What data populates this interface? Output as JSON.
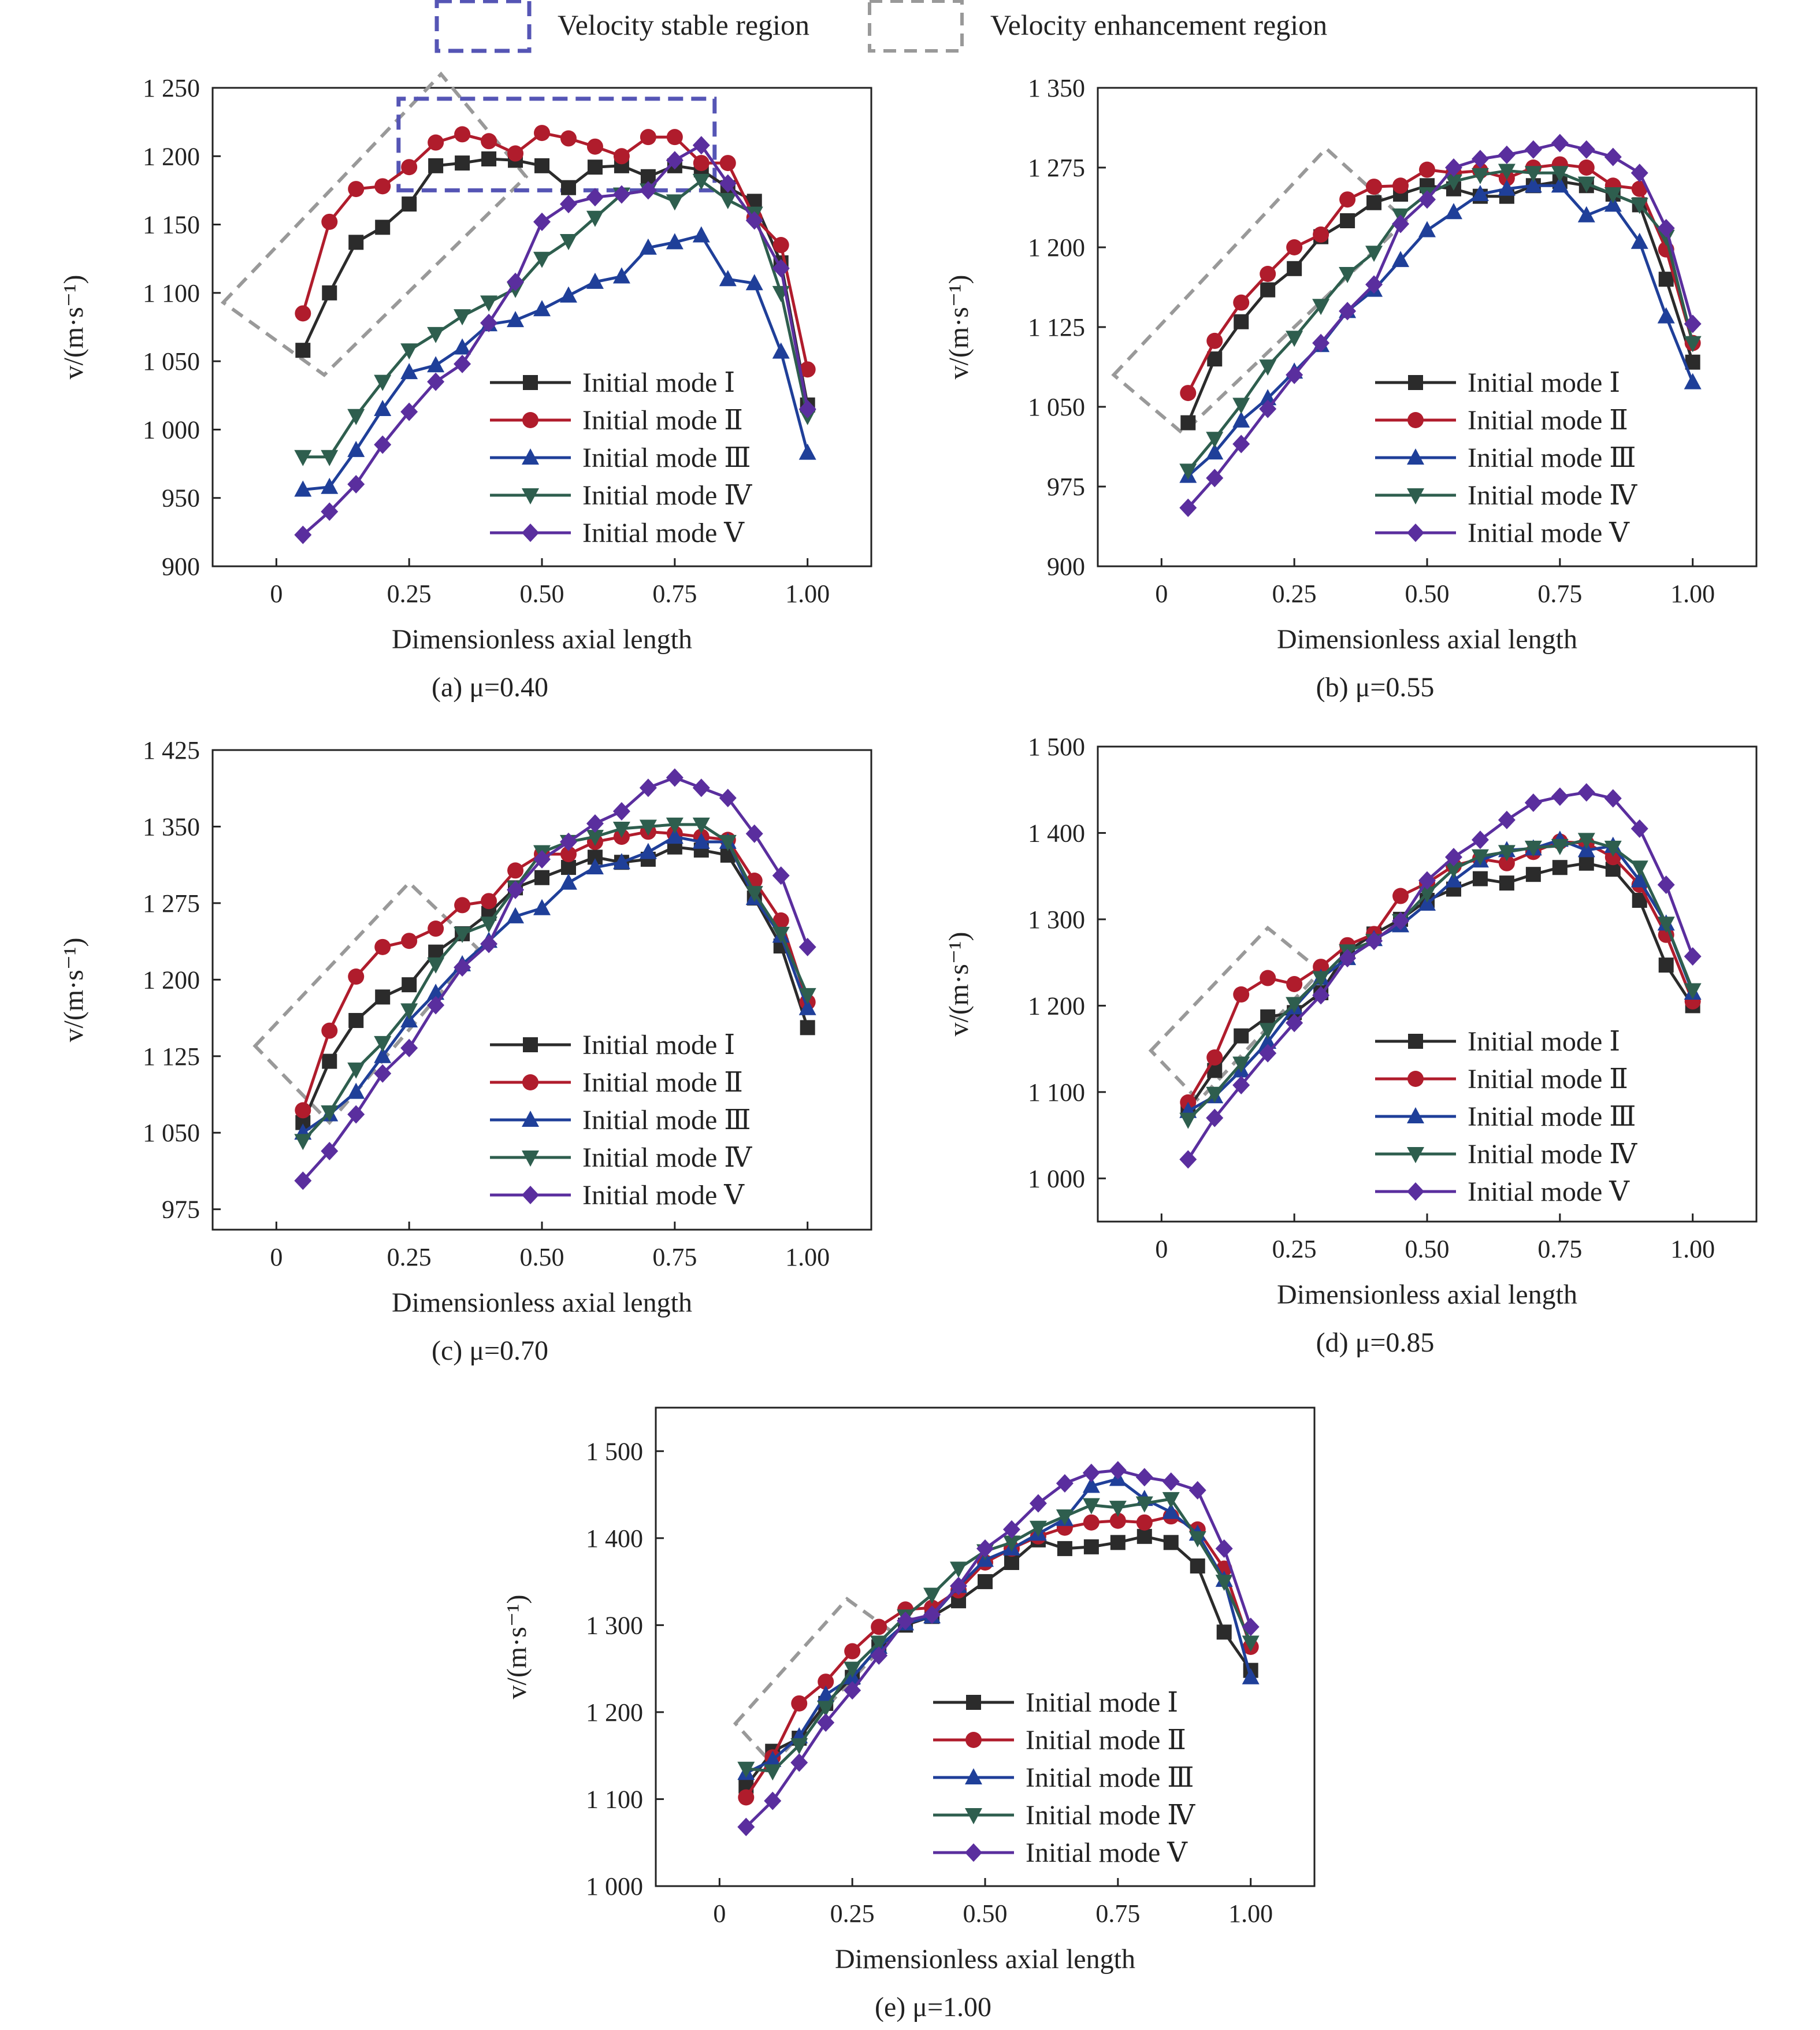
{
  "top_legend": {
    "stable_label": "Velocity stable region",
    "stable_color": "#5555b5",
    "enhance_label": "Velocity enhancement region",
    "enhance_color": "#999999"
  },
  "series_style": [
    {
      "color": "#2b2b2b",
      "marker": "square"
    },
    {
      "color": "#b01c2c",
      "marker": "circle"
    },
    {
      "color": "#1f3f99",
      "marker": "triangle-up"
    },
    {
      "color": "#2e5e4e",
      "marker": "triangle-down"
    },
    {
      "color": "#5a2e9e",
      "marker": "diamond"
    }
  ],
  "chart_data": [
    {
      "type": "line",
      "caption": "(a) μ=0.40",
      "xlabel": "Dimensionless axial length",
      "ylabel": "v/(m·s⁻¹)",
      "xlim": [
        -0.12,
        1.12
      ],
      "ylim": [
        900,
        1250
      ],
      "xticks": [
        0,
        0.25,
        0.5,
        0.75,
        1.0
      ],
      "xtick_labels": [
        "0",
        "0.25",
        "0.50",
        "0.75",
        "1.00"
      ],
      "yticks": [
        900,
        950,
        1000,
        1050,
        1100,
        1150,
        1200,
        1250
      ],
      "ytick_labels": [
        "900",
        "950",
        "1 000",
        "1 050",
        "1 100",
        "1 150",
        "1 200",
        "1 250"
      ],
      "x": [
        0.05,
        0.1,
        0.15,
        0.2,
        0.25,
        0.3,
        0.35,
        0.4,
        0.45,
        0.5,
        0.55,
        0.6,
        0.65,
        0.7,
        0.75,
        0.8,
        0.85,
        0.9,
        0.95,
        1.0
      ],
      "series": [
        {
          "name": "Initial mode Ⅰ",
          "values": [
            1058,
            1100,
            1137,
            1148,
            1165,
            1193,
            1195,
            1198,
            1197,
            1193,
            1177,
            1192,
            1193,
            1185,
            1193,
            1190,
            1177,
            1167,
            1122,
            1018
          ]
        },
        {
          "name": "Initial mode Ⅱ",
          "values": [
            1085,
            1152,
            1176,
            1178,
            1192,
            1210,
            1216,
            1211,
            1202,
            1217,
            1213,
            1207,
            1200,
            1214,
            1214,
            1195,
            1195,
            1155,
            1135,
            1044
          ]
        },
        {
          "name": "Initial mode Ⅲ",
          "values": [
            956,
            958,
            985,
            1015,
            1042,
            1047,
            1060,
            1077,
            1080,
            1088,
            1098,
            1108,
            1112,
            1133,
            1137,
            1142,
            1110,
            1107,
            1057,
            983
          ]
        },
        {
          "name": "Initial mode Ⅳ",
          "values": [
            980,
            980,
            1010,
            1035,
            1058,
            1070,
            1083,
            1093,
            1103,
            1125,
            1138,
            1155,
            1172,
            1175,
            1167,
            1182,
            1168,
            1158,
            1100,
            1010
          ]
        },
        {
          "name": "Initial mode Ⅴ",
          "values": [
            923,
            940,
            960,
            989,
            1013,
            1035,
            1048,
            1078,
            1108,
            1152,
            1165,
            1170,
            1172,
            1175,
            1197,
            1208,
            1180,
            1153,
            1118,
            1015
          ]
        }
      ],
      "regions": [
        {
          "kind": "enhancement",
          "corners": [
            [
              -0.1,
              1093
            ],
            [
              0.31,
              1260
            ],
            [
              0.47,
              1185
            ],
            [
              0.09,
              1040
            ]
          ]
        },
        {
          "kind": "stable",
          "corners": [
            [
              0.23,
              1175
            ],
            [
              0.825,
              1175
            ],
            [
              0.825,
              1242
            ],
            [
              0.23,
              1242
            ]
          ]
        }
      ]
    },
    {
      "type": "line",
      "caption": "(b) μ=0.55",
      "xlabel": "Dimensionless axial length",
      "ylabel": "v/(m·s⁻¹)",
      "xlim": [
        -0.12,
        1.12
      ],
      "ylim": [
        900,
        1350
      ],
      "xticks": [
        0,
        0.25,
        0.5,
        0.75,
        1.0
      ],
      "xtick_labels": [
        "0",
        "0.25",
        "0.50",
        "0.75",
        "1.00"
      ],
      "yticks": [
        900,
        975,
        1050,
        1125,
        1200,
        1275,
        1350
      ],
      "ytick_labels": [
        "900",
        "975",
        "1 050",
        "1 125",
        "1 200",
        "1 275",
        "1 350"
      ],
      "x": [
        0.05,
        0.1,
        0.15,
        0.2,
        0.25,
        0.3,
        0.35,
        0.4,
        0.45,
        0.5,
        0.55,
        0.6,
        0.65,
        0.7,
        0.75,
        0.8,
        0.85,
        0.9,
        0.95,
        1.0
      ],
      "series": [
        {
          "name": "Initial mode Ⅰ",
          "values": [
            1035,
            1095,
            1130,
            1160,
            1180,
            1210,
            1225,
            1242,
            1250,
            1258,
            1255,
            1248,
            1248,
            1258,
            1262,
            1258,
            1250,
            1240,
            1170,
            1092
          ]
        },
        {
          "name": "Initial mode Ⅱ",
          "values": [
            1063,
            1112,
            1148,
            1175,
            1200,
            1212,
            1245,
            1257,
            1258,
            1273,
            1270,
            1272,
            1265,
            1275,
            1278,
            1275,
            1258,
            1255,
            1198,
            1110
          ]
        },
        {
          "name": "Initial mode Ⅲ",
          "values": [
            985,
            1007,
            1037,
            1058,
            1083,
            1108,
            1140,
            1160,
            1188,
            1216,
            1233,
            1250,
            1255,
            1258,
            1258,
            1230,
            1240,
            1205,
            1135,
            1073
          ]
        },
        {
          "name": "Initial mode Ⅳ",
          "values": [
            990,
            1020,
            1052,
            1088,
            1115,
            1145,
            1175,
            1195,
            1230,
            1250,
            1262,
            1268,
            1272,
            1270,
            1270,
            1260,
            1250,
            1240,
            1210,
            1110
          ]
        },
        {
          "name": "Initial mode Ⅴ",
          "values": [
            955,
            983,
            1015,
            1048,
            1080,
            1110,
            1140,
            1165,
            1222,
            1245,
            1275,
            1283,
            1287,
            1292,
            1298,
            1292,
            1285,
            1270,
            1218,
            1128
          ]
        }
      ],
      "regions": [
        {
          "kind": "enhancement",
          "corners": [
            [
              -0.09,
              1080
            ],
            [
              0.31,
              1293
            ],
            [
              0.46,
              1225
            ],
            [
              0.04,
              1025
            ]
          ]
        }
      ]
    },
    {
      "type": "line",
      "caption": "(c) μ=0.70",
      "xlabel": "Dimensionless axial length",
      "ylabel": "v/(m·s⁻¹)",
      "xlim": [
        -0.12,
        1.12
      ],
      "ylim": [
        955,
        1425
      ],
      "xticks": [
        0,
        0.25,
        0.5,
        0.75,
        1.0
      ],
      "xtick_labels": [
        "0",
        "0.25",
        "0.50",
        "0.75",
        "1.00"
      ],
      "yticks": [
        975,
        1050,
        1125,
        1200,
        1275,
        1350,
        1425
      ],
      "ytick_labels": [
        "975",
        "1 050",
        "1 125",
        "1 200",
        "1 275",
        "1 350",
        "1 425"
      ],
      "x": [
        0.05,
        0.1,
        0.15,
        0.2,
        0.25,
        0.3,
        0.35,
        0.4,
        0.45,
        0.5,
        0.55,
        0.6,
        0.65,
        0.7,
        0.75,
        0.8,
        0.85,
        0.9,
        0.95,
        1.0
      ],
      "series": [
        {
          "name": "Initial mode Ⅰ",
          "values": [
            1060,
            1120,
            1160,
            1183,
            1195,
            1227,
            1245,
            1265,
            1290,
            1300,
            1310,
            1320,
            1315,
            1318,
            1330,
            1327,
            1322,
            1280,
            1233,
            1153
          ]
        },
        {
          "name": "Initial mode Ⅱ",
          "values": [
            1072,
            1150,
            1203,
            1232,
            1238,
            1250,
            1273,
            1277,
            1307,
            1323,
            1323,
            1335,
            1340,
            1345,
            1343,
            1340,
            1337,
            1297,
            1258,
            1178
          ]
        },
        {
          "name": "Initial mode Ⅲ",
          "values": [
            1050,
            1068,
            1090,
            1125,
            1160,
            1187,
            1215,
            1238,
            1262,
            1270,
            1295,
            1310,
            1315,
            1325,
            1340,
            1335,
            1335,
            1280,
            1243,
            1172
          ]
        },
        {
          "name": "Initial mode Ⅳ",
          "values": [
            1042,
            1070,
            1112,
            1138,
            1170,
            1215,
            1245,
            1255,
            1290,
            1325,
            1335,
            1340,
            1348,
            1350,
            1352,
            1352,
            1335,
            1285,
            1245,
            1185
          ]
        },
        {
          "name": "Initial mode Ⅴ",
          "values": [
            1003,
            1032,
            1068,
            1108,
            1133,
            1175,
            1212,
            1235,
            1288,
            1318,
            1335,
            1353,
            1365,
            1388,
            1398,
            1388,
            1378,
            1343,
            1302,
            1232
          ]
        }
      ],
      "regions": [
        {
          "kind": "enhancement",
          "corners": [
            [
              -0.04,
              1135
            ],
            [
              0.25,
              1295
            ],
            [
              0.38,
              1230
            ],
            [
              0.1,
              1060
            ]
          ]
        }
      ]
    },
    {
      "type": "line",
      "caption": "(d) μ=0.85",
      "xlabel": "Dimensionless axial length",
      "ylabel": "v/(m·s⁻¹)",
      "xlim": [
        -0.12,
        1.12
      ],
      "ylim": [
        950,
        1500
      ],
      "xticks": [
        0,
        0.25,
        0.5,
        0.75,
        1.0
      ],
      "xtick_labels": [
        "0",
        "0.25",
        "0.50",
        "0.75",
        "1.00"
      ],
      "yticks": [
        1000,
        1100,
        1200,
        1300,
        1400,
        1500
      ],
      "ytick_labels": [
        "1 000",
        "1 100",
        "1 200",
        "1 300",
        "1 400",
        "1 500"
      ],
      "x": [
        0.05,
        0.1,
        0.15,
        0.2,
        0.25,
        0.3,
        0.35,
        0.4,
        0.45,
        0.5,
        0.55,
        0.6,
        0.65,
        0.7,
        0.75,
        0.8,
        0.85,
        0.9,
        0.95,
        1.0
      ],
      "series": [
        {
          "name": "Initial mode Ⅰ",
          "values": [
            1080,
            1125,
            1165,
            1187,
            1192,
            1215,
            1263,
            1283,
            1300,
            1322,
            1335,
            1347,
            1342,
            1352,
            1360,
            1365,
            1358,
            1322,
            1247,
            1200
          ]
        },
        {
          "name": "Initial mode Ⅱ",
          "values": [
            1088,
            1140,
            1213,
            1232,
            1225,
            1245,
            1270,
            1283,
            1327,
            1342,
            1362,
            1370,
            1365,
            1378,
            1390,
            1388,
            1372,
            1340,
            1282,
            1205
          ]
        },
        {
          "name": "Initial mode Ⅲ",
          "values": [
            1078,
            1095,
            1125,
            1158,
            1198,
            1232,
            1255,
            1277,
            1293,
            1318,
            1345,
            1368,
            1380,
            1382,
            1392,
            1380,
            1385,
            1345,
            1295,
            1215
          ]
        },
        {
          "name": "Initial mode Ⅳ",
          "values": [
            1068,
            1098,
            1133,
            1172,
            1202,
            1232,
            1263,
            1275,
            1298,
            1330,
            1358,
            1373,
            1378,
            1383,
            1385,
            1392,
            1383,
            1360,
            1295,
            1218
          ]
        },
        {
          "name": "Initial mode Ⅴ",
          "values": [
            1022,
            1070,
            1108,
            1145,
            1180,
            1212,
            1255,
            1275,
            1298,
            1345,
            1372,
            1392,
            1415,
            1435,
            1442,
            1447,
            1440,
            1405,
            1340,
            1257
          ]
        }
      ],
      "regions": [
        {
          "kind": "enhancement",
          "corners": [
            [
              -0.02,
              1148
            ],
            [
              0.2,
              1290
            ],
            [
              0.3,
              1240
            ],
            [
              0.07,
              1090
            ]
          ]
        }
      ]
    },
    {
      "type": "line",
      "caption": "(e) μ=1.00",
      "xlabel": "Dimensionless axial length",
      "ylabel": "v/(m·s⁻¹)",
      "xlim": [
        -0.12,
        1.12
      ],
      "ylim": [
        1000,
        1550
      ],
      "xticks": [
        0,
        0.25,
        0.5,
        0.75,
        1.0
      ],
      "xtick_labels": [
        "0",
        "0.25",
        "0.50",
        "0.75",
        "1.00"
      ],
      "yticks": [
        1000,
        1100,
        1200,
        1300,
        1400,
        1500
      ],
      "ytick_labels": [
        "1 000",
        "1 100",
        "1 200",
        "1 300",
        "1 400",
        "1 500"
      ],
      "x": [
        0.05,
        0.1,
        0.15,
        0.2,
        0.25,
        0.3,
        0.35,
        0.4,
        0.45,
        0.5,
        0.55,
        0.6,
        0.65,
        0.7,
        0.75,
        0.8,
        0.85,
        0.9,
        0.95,
        1.0
      ],
      "series": [
        {
          "name": "Initial mode Ⅰ",
          "values": [
            1115,
            1155,
            1170,
            1210,
            1240,
            1275,
            1300,
            1310,
            1328,
            1350,
            1372,
            1398,
            1388,
            1390,
            1395,
            1402,
            1395,
            1368,
            1292,
            1248
          ]
        },
        {
          "name": "Initial mode Ⅱ",
          "values": [
            1102,
            1148,
            1210,
            1235,
            1270,
            1298,
            1318,
            1320,
            1340,
            1372,
            1388,
            1402,
            1412,
            1418,
            1420,
            1418,
            1425,
            1410,
            1365,
            1275
          ]
        },
        {
          "name": "Initial mode Ⅲ",
          "values": [
            1130,
            1145,
            1172,
            1220,
            1240,
            1275,
            1302,
            1310,
            1345,
            1375,
            1388,
            1405,
            1422,
            1460,
            1468,
            1445,
            1430,
            1405,
            1352,
            1240
          ]
        },
        {
          "name": "Initial mode Ⅳ",
          "values": [
            1135,
            1132,
            1162,
            1205,
            1250,
            1280,
            1310,
            1335,
            1365,
            1385,
            1395,
            1412,
            1425,
            1438,
            1435,
            1440,
            1445,
            1400,
            1350,
            1280
          ]
        },
        {
          "name": "Initial mode Ⅴ",
          "values": [
            1068,
            1098,
            1142,
            1188,
            1225,
            1265,
            1305,
            1312,
            1345,
            1388,
            1410,
            1440,
            1463,
            1475,
            1478,
            1470,
            1465,
            1455,
            1388,
            1298
          ]
        }
      ],
      "regions": [
        {
          "kind": "enhancement",
          "corners": [
            [
              0.03,
              1187
            ],
            [
              0.24,
              1330
            ],
            [
              0.33,
              1290
            ],
            [
              0.1,
              1140
            ]
          ]
        }
      ]
    }
  ]
}
